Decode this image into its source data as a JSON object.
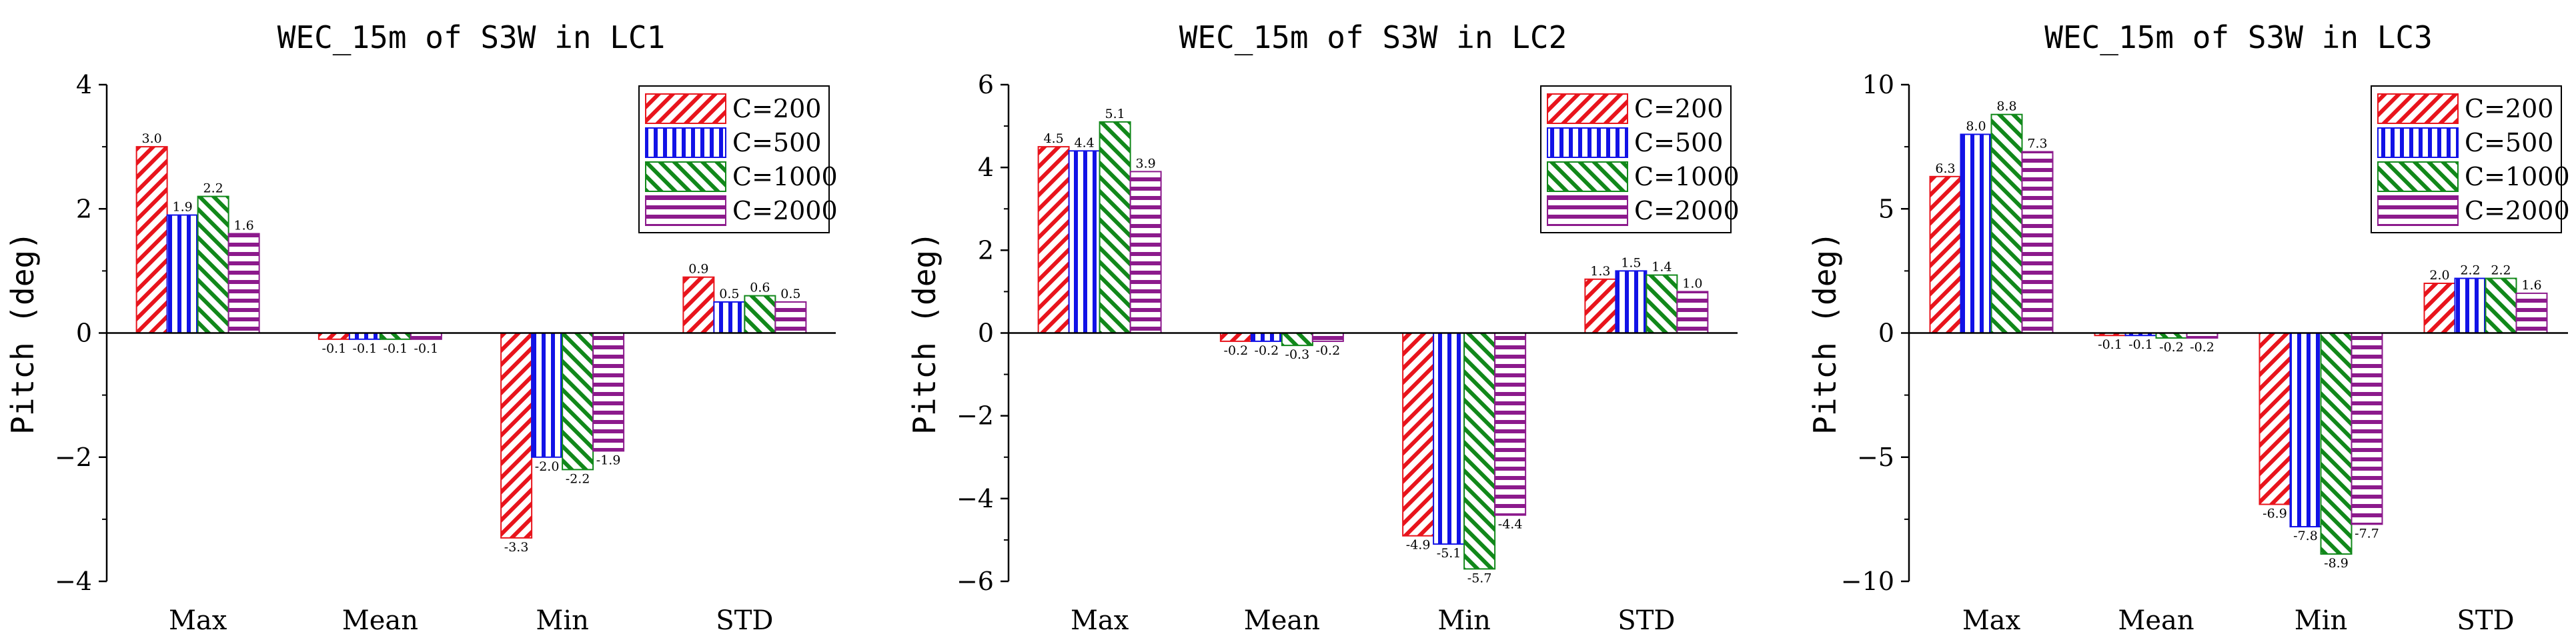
{
  "chart_data": [
    {
      "type": "bar",
      "title": "WEC_15m of S3W in LC1",
      "xlabel": "",
      "ylabel": "Pitch (deg)",
      "categories": [
        "Max",
        "Mean",
        "Min",
        "STD"
      ],
      "ylim": [
        -4,
        4
      ],
      "yticks": [
        -4,
        -2,
        0,
        2,
        4
      ],
      "yticklabels": [
        "−4",
        "−2",
        "0",
        "2",
        "4"
      ],
      "legend_position": "top-right",
      "series": [
        {
          "name": "C=200",
          "values": [
            3.0,
            -0.1,
            -3.3,
            0.9
          ],
          "labels": [
            "3.0",
            "-0.1",
            "-3.3",
            "0.9"
          ]
        },
        {
          "name": "C=500",
          "values": [
            1.9,
            -0.1,
            -2.0,
            0.5
          ],
          "labels": [
            "1.9",
            "-0.1",
            "-2.0",
            "0.5"
          ]
        },
        {
          "name": "C=1000",
          "values": [
            2.2,
            -0.1,
            -2.2,
            0.6
          ],
          "labels": [
            "2.2",
            "-0.1",
            "-2.2",
            "0.6"
          ]
        },
        {
          "name": "C=2000",
          "values": [
            1.6,
            -0.1,
            -1.9,
            0.5
          ],
          "labels": [
            "1.6",
            "-0.1",
            "-1.9",
            "0.5"
          ]
        }
      ]
    },
    {
      "type": "bar",
      "title": "WEC_15m of S3W in LC2",
      "xlabel": "",
      "ylabel": "Pitch (deg)",
      "categories": [
        "Max",
        "Mean",
        "Min",
        "STD"
      ],
      "ylim": [
        -6,
        6
      ],
      "yticks": [
        -6,
        -4,
        -2,
        0,
        2,
        4,
        6
      ],
      "yticklabels": [
        "−6",
        "−4",
        "−2",
        "0",
        "2",
        "4",
        "6"
      ],
      "legend_position": "top-right",
      "series": [
        {
          "name": "C=200",
          "values": [
            4.5,
            -0.2,
            -4.9,
            1.3
          ],
          "labels": [
            "4.5",
            "-0.2",
            "-4.9",
            "1.3"
          ]
        },
        {
          "name": "C=500",
          "values": [
            4.4,
            -0.2,
            -5.1,
            1.5
          ],
          "labels": [
            "4.4",
            "-0.2",
            "-5.1",
            "1.5"
          ]
        },
        {
          "name": "C=1000",
          "values": [
            5.1,
            -0.3,
            -5.7,
            1.4
          ],
          "labels": [
            "5.1",
            "-0.3",
            "-5.7",
            "1.4"
          ]
        },
        {
          "name": "C=2000",
          "values": [
            3.9,
            -0.2,
            -4.4,
            1.0
          ],
          "labels": [
            "3.9",
            "-0.2",
            "-4.4",
            "1.0"
          ]
        }
      ]
    },
    {
      "type": "bar",
      "title": "WEC_15m of S3W in LC3",
      "xlabel": "",
      "ylabel": "Pitch (deg)",
      "categories": [
        "Max",
        "Mean",
        "Min",
        "STD"
      ],
      "ylim": [
        -10,
        10
      ],
      "yticks": [
        -10,
        -5,
        0,
        5,
        10
      ],
      "yticklabels": [
        "−10",
        "−5",
        "0",
        "5",
        "10"
      ],
      "legend_position": "top-right",
      "series": [
        {
          "name": "C=200",
          "values": [
            6.3,
            -0.1,
            -6.9,
            2.0
          ],
          "labels": [
            "6.3",
            "-0.1",
            "-6.9",
            "2.0"
          ]
        },
        {
          "name": "C=500",
          "values": [
            8.0,
            -0.1,
            -7.8,
            2.2
          ],
          "labels": [
            "8.0",
            "-0.1",
            "-7.8",
            "2.2"
          ]
        },
        {
          "name": "C=1000",
          "values": [
            8.8,
            -0.2,
            -8.9,
            2.2
          ],
          "labels": [
            "8.8",
            "-0.2",
            "-8.9",
            "2.2"
          ]
        },
        {
          "name": "C=2000",
          "values": [
            7.3,
            -0.2,
            -7.7,
            1.6
          ],
          "labels": [
            "7.3",
            "-0.2",
            "-7.7",
            "1.6"
          ]
        }
      ]
    }
  ],
  "style": {
    "series_colors": [
      "#e8141c",
      "#1212e6",
      "#11881a",
      "#8c1a8c"
    ],
    "series_patterns": [
      "diagonal-forward-hatch",
      "vertical-hatch",
      "diagonal-back-hatch",
      "horizontal-hatch"
    ]
  }
}
